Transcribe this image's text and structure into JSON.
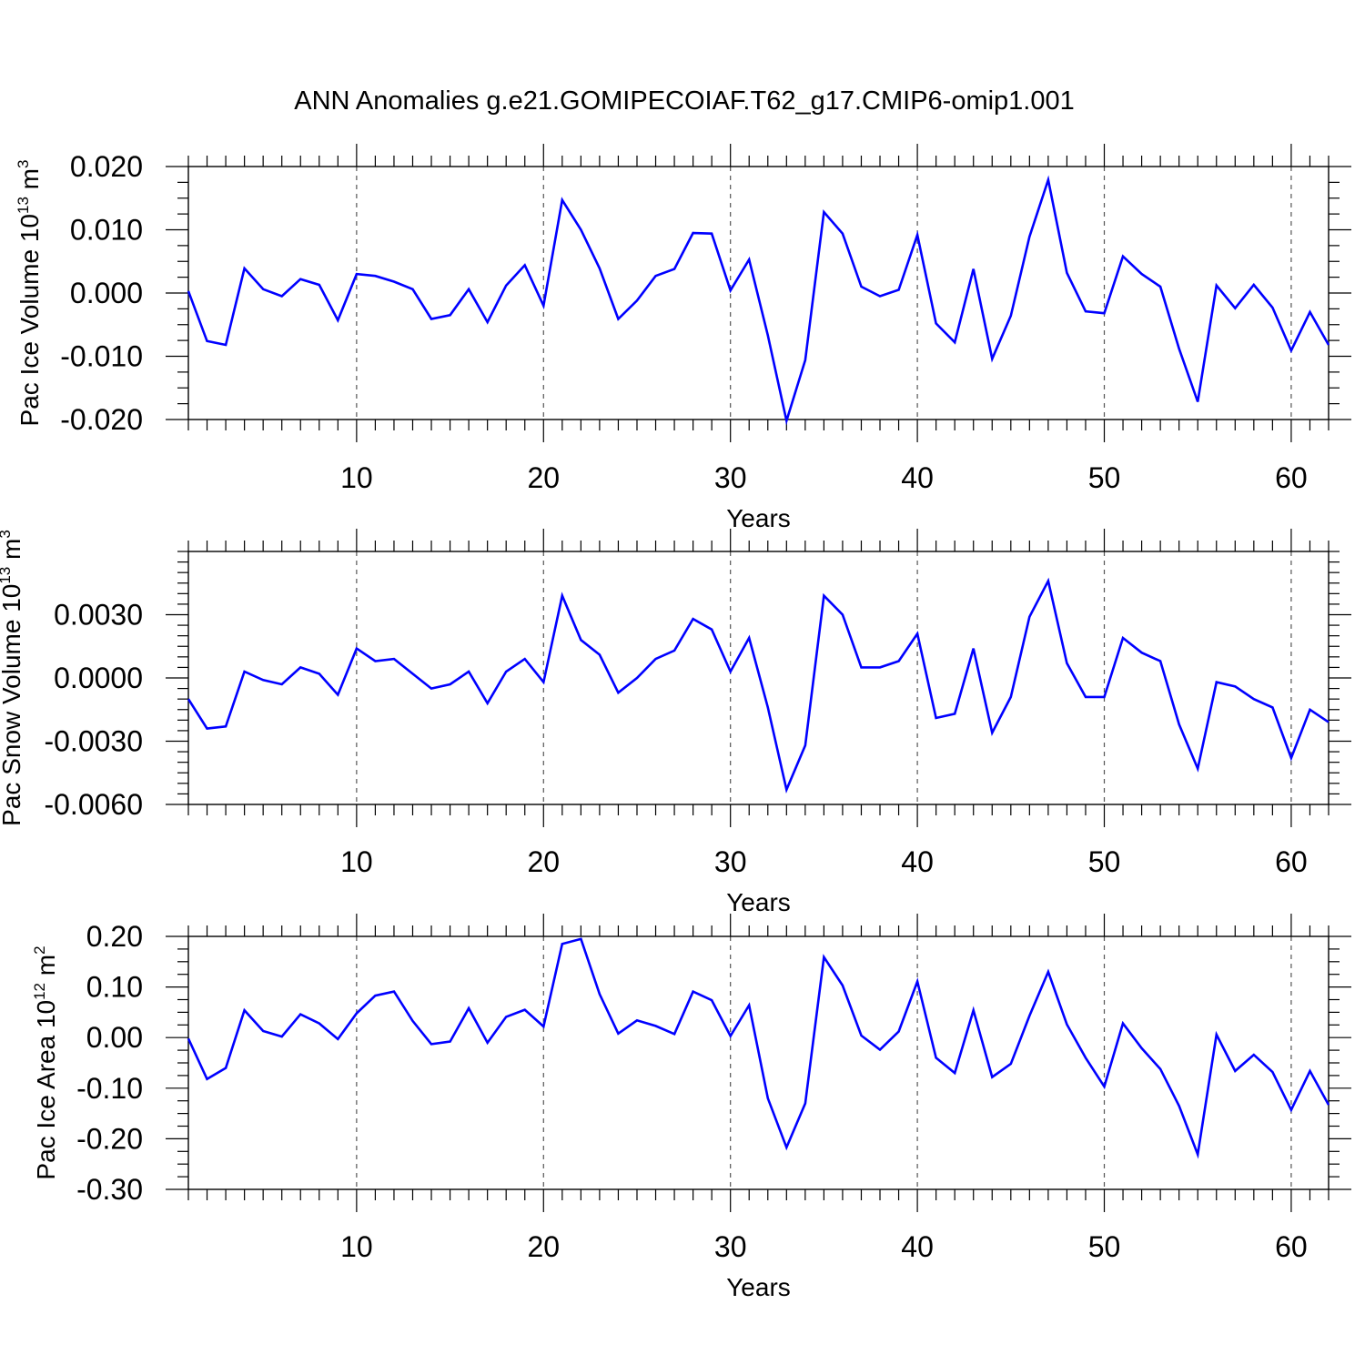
{
  "figure": {
    "title": "ANN Anomalies g.e21.GOMIPECOIAF.T62_g17.CMIP6-omip1.001"
  },
  "colors": {
    "line": "#0000ff",
    "axes": "#000000",
    "grid": "#555555"
  },
  "chart_data": [
    {
      "type": "line",
      "title": "",
      "xlabel": "Years",
      "ylabel_text": "Pac Ice Volume 10",
      "ylabel_sup": "13",
      "ylabel_unit": " m",
      "ylabel_unit_sup": "3",
      "xlim": [
        1,
        62
      ],
      "ylim": [
        -0.02,
        0.02
      ],
      "yticks": [
        -0.02,
        -0.01,
        0.0,
        0.01,
        0.02
      ],
      "ytick_labels": [
        "-0.020",
        "-0.010",
        "0.000",
        "0.010",
        "0.020"
      ],
      "yminor_step": 0.0025,
      "xticks": [
        10,
        20,
        30,
        40,
        50,
        60
      ],
      "xtick_labels": [
        "10",
        "20",
        "30",
        "40",
        "50",
        "60"
      ],
      "grid_x": true,
      "series": [
        {
          "name": "Pac Ice Volume",
          "x": [
            1,
            2,
            3,
            4,
            5,
            6,
            7,
            8,
            9,
            10,
            11,
            12,
            13,
            14,
            15,
            16,
            17,
            18,
            19,
            20,
            21,
            22,
            23,
            24,
            25,
            26,
            27,
            28,
            29,
            30,
            31,
            32,
            33,
            34,
            35,
            36,
            37,
            38,
            39,
            40,
            41,
            42,
            43,
            44,
            45,
            46,
            47,
            48,
            49,
            50,
            51,
            52,
            53,
            54,
            55,
            56,
            57,
            58,
            59,
            60,
            61,
            62
          ],
          "values": [
            0.0003,
            -0.0076,
            -0.0082,
            0.0039,
            0.0006,
            -0.0005,
            0.0022,
            0.0013,
            -0.0043,
            0.003,
            0.0027,
            0.0018,
            0.0006,
            -0.0041,
            -0.0035,
            0.0006,
            -0.0046,
            0.0012,
            0.0044,
            -0.002,
            0.0147,
            0.01,
            0.0039,
            -0.0041,
            -0.0012,
            0.0027,
            0.0038,
            0.0095,
            0.0094,
            0.0004,
            0.0053,
            -0.0067,
            -0.0202,
            -0.0106,
            0.0128,
            0.0094,
            0.001,
            -0.0005,
            0.0005,
            0.0092,
            -0.0048,
            -0.0078,
            0.0038,
            -0.0104,
            -0.0036,
            0.0089,
            0.0179,
            0.0032,
            -0.0029,
            -0.0032,
            0.0058,
            0.003,
            0.001,
            -0.0088,
            -0.0172,
            0.0012,
            -0.0024,
            0.0013,
            -0.0023,
            -0.0091,
            -0.003,
            -0.0082
          ]
        }
      ]
    },
    {
      "type": "line",
      "title": "",
      "xlabel": "Years",
      "ylabel_text": "Pac Snow Volume 10",
      "ylabel_sup": "13",
      "ylabel_unit": " m",
      "ylabel_unit_sup": "3",
      "xlim": [
        1,
        62
      ],
      "ylim": [
        -0.006,
        0.006
      ],
      "yticks": [
        -0.006,
        -0.003,
        0.0,
        0.003
      ],
      "ytick_labels": [
        "-0.0060",
        "-0.0030",
        "0.0000",
        "0.0030"
      ],
      "yminor_step": 0.0005,
      "xticks": [
        10,
        20,
        30,
        40,
        50,
        60
      ],
      "xtick_labels": [
        "10",
        "20",
        "30",
        "40",
        "50",
        "60"
      ],
      "grid_x": true,
      "series": [
        {
          "name": "Pac Snow Volume",
          "x": [
            1,
            2,
            3,
            4,
            5,
            6,
            7,
            8,
            9,
            10,
            11,
            12,
            13,
            14,
            15,
            16,
            17,
            18,
            19,
            20,
            21,
            22,
            23,
            24,
            25,
            26,
            27,
            28,
            29,
            30,
            31,
            32,
            33,
            34,
            35,
            36,
            37,
            38,
            39,
            40,
            41,
            42,
            43,
            44,
            45,
            46,
            47,
            48,
            49,
            50,
            51,
            52,
            53,
            54,
            55,
            56,
            57,
            58,
            59,
            60,
            61,
            62
          ],
          "values": [
            -0.001,
            -0.0024,
            -0.0023,
            0.0003,
            -0.0001,
            -0.0003,
            0.0005,
            0.0002,
            -0.0008,
            0.0014,
            0.0008,
            0.0009,
            0.0002,
            -0.0005,
            -0.0003,
            0.0003,
            -0.0012,
            0.0003,
            0.0009,
            -0.0002,
            0.0039,
            0.0018,
            0.0011,
            -0.0007,
            0.0,
            0.0009,
            0.0013,
            0.0028,
            0.0023,
            0.0003,
            0.0019,
            -0.0014,
            -0.0053,
            -0.0032,
            0.0039,
            0.003,
            0.0005,
            0.0005,
            0.0008,
            0.0021,
            -0.0019,
            -0.0017,
            0.0014,
            -0.0026,
            -0.0009,
            0.0029,
            0.0046,
            0.0007,
            -0.0009,
            -0.0009,
            0.0019,
            0.0012,
            0.0008,
            -0.0022,
            -0.0043,
            -0.0002,
            -0.0004,
            -0.001,
            -0.0014,
            -0.0038,
            -0.0015,
            -0.0021
          ]
        }
      ]
    },
    {
      "type": "line",
      "title": "",
      "xlabel": "Years",
      "ylabel_text": "Pac Ice Area 10",
      "ylabel_sup": "12",
      "ylabel_unit": " m",
      "ylabel_unit_sup": "2",
      "xlim": [
        1,
        62
      ],
      "ylim": [
        -0.3,
        0.2
      ],
      "yticks": [
        -0.3,
        -0.2,
        -0.1,
        0.0,
        0.1,
        0.2
      ],
      "ytick_labels": [
        "-0.30",
        "-0.20",
        "-0.10",
        "0.00",
        "0.10",
        "0.20"
      ],
      "yminor_step": 0.025,
      "xticks": [
        10,
        20,
        30,
        40,
        50,
        60
      ],
      "xtick_labels": [
        "10",
        "20",
        "30",
        "40",
        "50",
        "60"
      ],
      "grid_x": true,
      "series": [
        {
          "name": "Pac Ice Area",
          "x": [
            1,
            2,
            3,
            4,
            5,
            6,
            7,
            8,
            9,
            10,
            11,
            12,
            13,
            14,
            15,
            16,
            17,
            18,
            19,
            20,
            21,
            22,
            23,
            24,
            25,
            26,
            27,
            28,
            29,
            30,
            31,
            32,
            33,
            34,
            35,
            36,
            37,
            38,
            39,
            40,
            41,
            42,
            43,
            44,
            45,
            46,
            47,
            48,
            49,
            50,
            51,
            52,
            53,
            54,
            55,
            56,
            57,
            58,
            59,
            60,
            61,
            62
          ],
          "values": [
            -0.002,
            -0.082,
            -0.06,
            0.054,
            0.013,
            0.002,
            0.046,
            0.028,
            -0.003,
            0.048,
            0.083,
            0.091,
            0.033,
            -0.013,
            -0.008,
            0.058,
            -0.01,
            0.041,
            0.055,
            0.022,
            0.185,
            0.195,
            0.086,
            0.008,
            0.034,
            0.023,
            0.007,
            0.091,
            0.074,
            0.003,
            0.064,
            -0.12,
            -0.217,
            -0.13,
            0.159,
            0.103,
            0.004,
            -0.024,
            0.012,
            0.111,
            -0.04,
            -0.07,
            0.054,
            -0.078,
            -0.052,
            0.043,
            0.13,
            0.026,
            -0.04,
            -0.097,
            0.028,
            -0.021,
            -0.062,
            -0.135,
            -0.231,
            0.006,
            -0.066,
            -0.034,
            -0.068,
            -0.143,
            -0.066,
            -0.133
          ]
        }
      ]
    }
  ]
}
